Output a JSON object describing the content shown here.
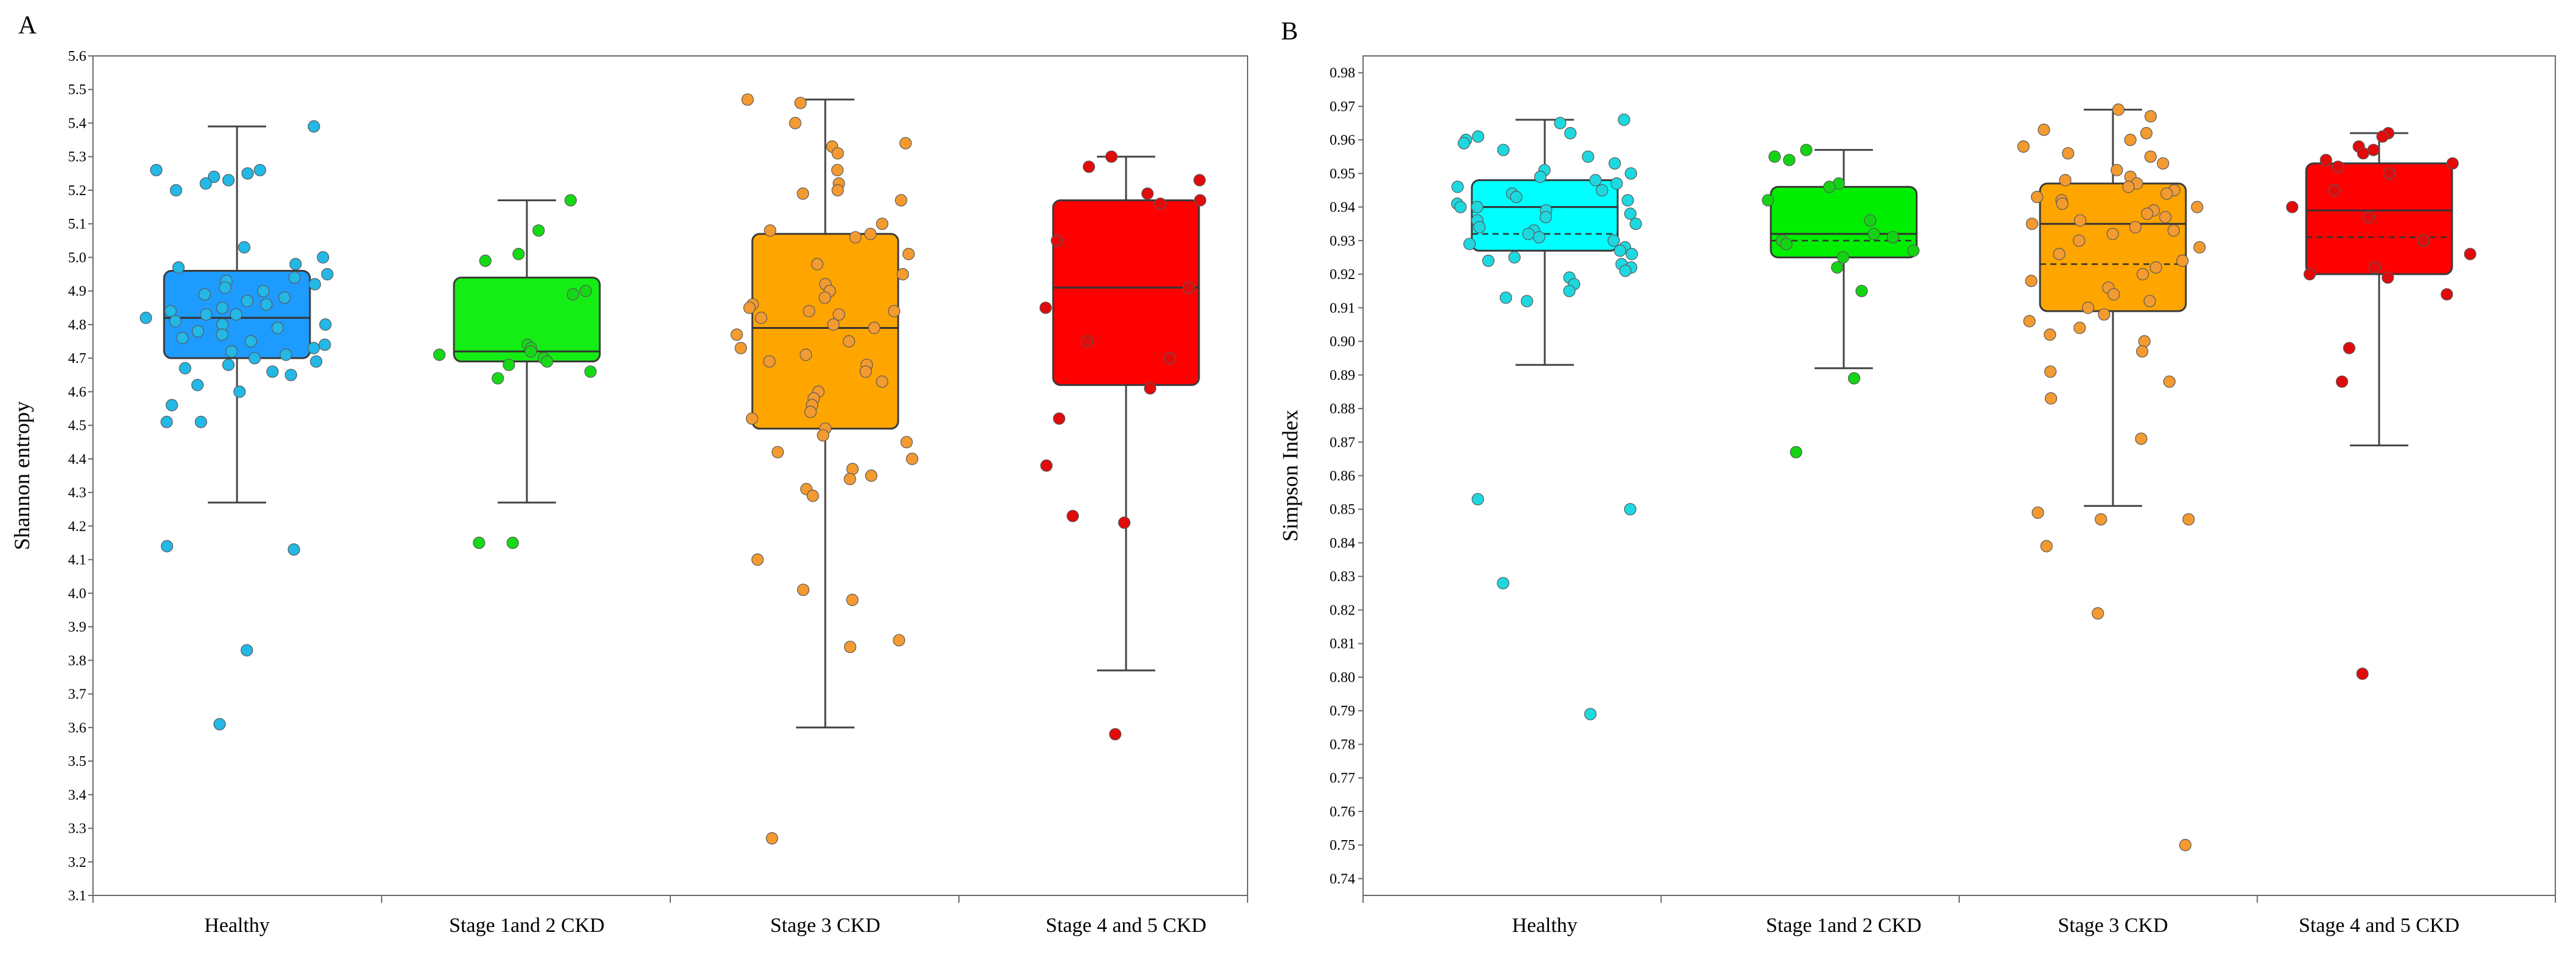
{
  "chart_data": [
    {
      "type": "box",
      "panel_label": "A",
      "ylabel": "Shannon entropy",
      "ylim": [
        3.1,
        5.6
      ],
      "ytick_step": 0.1,
      "categories": [
        "Healthy",
        "Stage 1and 2 CKD",
        "Stage 3 CKD",
        "Stage 4 and 5 CKD"
      ],
      "series": [
        {
          "category": "Healthy",
          "color": "#1e9bff",
          "point_color": "#23b8e6",
          "whisker_low": 4.27,
          "q1": 4.7,
          "median": 4.82,
          "q3": 4.96,
          "whisker_high": 5.39,
          "points": [
            5.39,
            5.26,
            5.25,
            5.24,
            5.23,
            5.26,
            5.2,
            5.22,
            5.03,
            5.0,
            4.98,
            4.97,
            4.95,
            4.94,
            4.93,
            4.92,
            4.91,
            4.9,
            4.89,
            4.88,
            4.87,
            4.86,
            4.85,
            4.84,
            4.83,
            4.83,
            4.82,
            4.81,
            4.8,
            4.8,
            4.79,
            4.78,
            4.77,
            4.76,
            4.75,
            4.74,
            4.73,
            4.72,
            4.71,
            4.7,
            4.69,
            4.68,
            4.67,
            4.66,
            4.65,
            4.62,
            4.6,
            4.56,
            4.51,
            4.51,
            4.14,
            4.13,
            3.83,
            3.61
          ]
        },
        {
          "category": "Stage 1and 2 CKD",
          "color": "#14ee14",
          "point_color": "#16d916",
          "whisker_low": 4.27,
          "q1": 4.69,
          "median": 4.72,
          "q3": 4.94,
          "whisker_high": 5.17,
          "points": [
            5.17,
            5.08,
            5.01,
            4.99,
            4.9,
            4.89,
            4.74,
            4.73,
            4.72,
            4.71,
            4.7,
            4.69,
            4.68,
            4.66,
            4.64,
            4.15,
            4.15
          ]
        },
        {
          "category": "Stage 3 CKD",
          "color": "#ffa500",
          "point_color": "#f39a30",
          "whisker_low": 3.6,
          "q1": 4.49,
          "median": 4.79,
          "q3": 5.07,
          "whisker_high": 5.47,
          "points": [
            5.47,
            5.46,
            5.4,
            5.34,
            5.33,
            5.31,
            5.26,
            5.22,
            5.2,
            5.19,
            5.17,
            5.1,
            5.08,
            5.07,
            5.06,
            5.01,
            4.98,
            4.95,
            4.92,
            4.9,
            4.88,
            4.86,
            4.85,
            4.84,
            4.84,
            4.83,
            4.82,
            4.8,
            4.79,
            4.77,
            4.75,
            4.73,
            4.71,
            4.69,
            4.68,
            4.66,
            4.63,
            4.6,
            4.58,
            4.56,
            4.54,
            4.52,
            4.49,
            4.47,
            4.45,
            4.42,
            4.4,
            4.37,
            4.35,
            4.34,
            4.31,
            4.29,
            4.1,
            4.01,
            3.98,
            3.86,
            3.84,
            3.27
          ]
        },
        {
          "category": "Stage 4 and 5 CKD",
          "color": "#ff0000",
          "point_color": "#e10b0b",
          "whisker_low": 3.77,
          "q1": 4.62,
          "median": 4.91,
          "q3": 5.17,
          "whisker_high": 5.3,
          "points": [
            5.3,
            5.27,
            5.23,
            5.19,
            5.17,
            5.16,
            5.05,
            4.91,
            4.85,
            4.75,
            4.7,
            4.61,
            4.52,
            4.38,
            4.23,
            4.21,
            3.58
          ]
        }
      ]
    },
    {
      "type": "box",
      "panel_label": "B",
      "ylabel": "Simpson Index",
      "ylim": [
        0.735,
        0.985
      ],
      "ytick_range": [
        0.74,
        0.98
      ],
      "ytick_step": 0.01,
      "categories": [
        "Healthy",
        "Stage 1and 2 CKD",
        "Stage 3 CKD",
        "Stage 4 and 5 CKD"
      ],
      "series": [
        {
          "category": "Healthy",
          "color": "#00ffff",
          "point_color": "#1ed8e0",
          "whisker_low": 0.893,
          "q1": 0.927,
          "median": 0.94,
          "q3": 0.948,
          "mean": 0.932,
          "whisker_high": 0.966,
          "points": [
            0.966,
            0.965,
            0.962,
            0.961,
            0.96,
            0.959,
            0.957,
            0.955,
            0.953,
            0.951,
            0.95,
            0.949,
            0.948,
            0.947,
            0.946,
            0.945,
            0.944,
            0.943,
            0.942,
            0.941,
            0.94,
            0.94,
            0.939,
            0.938,
            0.937,
            0.936,
            0.935,
            0.934,
            0.933,
            0.932,
            0.931,
            0.93,
            0.929,
            0.928,
            0.927,
            0.926,
            0.925,
            0.924,
            0.923,
            0.922,
            0.921,
            0.919,
            0.917,
            0.915,
            0.913,
            0.912,
            0.853,
            0.85,
            0.828,
            0.789
          ]
        },
        {
          "category": "Stage 1and 2 CKD",
          "color": "#00ee00",
          "point_color": "#12d412",
          "whisker_low": 0.892,
          "q1": 0.925,
          "median": 0.932,
          "q3": 0.946,
          "mean": 0.93,
          "whisker_high": 0.957,
          "points": [
            0.957,
            0.955,
            0.954,
            0.947,
            0.946,
            0.942,
            0.936,
            0.932,
            0.931,
            0.93,
            0.929,
            0.927,
            0.925,
            0.922,
            0.915,
            0.889,
            0.867
          ]
        },
        {
          "category": "Stage 3 CKD",
          "color": "#ffa500",
          "point_color": "#f39a30",
          "whisker_low": 0.851,
          "q1": 0.909,
          "median": 0.935,
          "q3": 0.947,
          "mean": 0.923,
          "whisker_high": 0.969,
          "points": [
            0.969,
            0.967,
            0.963,
            0.962,
            0.96,
            0.958,
            0.956,
            0.955,
            0.953,
            0.951,
            0.949,
            0.948,
            0.947,
            0.946,
            0.945,
            0.944,
            0.943,
            0.942,
            0.941,
            0.94,
            0.939,
            0.938,
            0.937,
            0.936,
            0.935,
            0.934,
            0.933,
            0.932,
            0.93,
            0.928,
            0.926,
            0.924,
            0.922,
            0.92,
            0.918,
            0.916,
            0.914,
            0.912,
            0.91,
            0.908,
            0.906,
            0.904,
            0.902,
            0.9,
            0.897,
            0.891,
            0.888,
            0.883,
            0.871,
            0.849,
            0.847,
            0.847,
            0.839,
            0.819,
            0.75
          ]
        },
        {
          "category": "Stage 4 and 5 CKD",
          "color": "#ff0000",
          "point_color": "#e10b0b",
          "whisker_low": 0.869,
          "q1": 0.92,
          "median": 0.939,
          "q3": 0.953,
          "mean": 0.931,
          "whisker_high": 0.962,
          "points": [
            0.962,
            0.961,
            0.958,
            0.957,
            0.956,
            0.954,
            0.953,
            0.952,
            0.95,
            0.945,
            0.94,
            0.937,
            0.93,
            0.926,
            0.922,
            0.92,
            0.919,
            0.914,
            0.898,
            0.888,
            0.801
          ]
        }
      ]
    }
  ]
}
